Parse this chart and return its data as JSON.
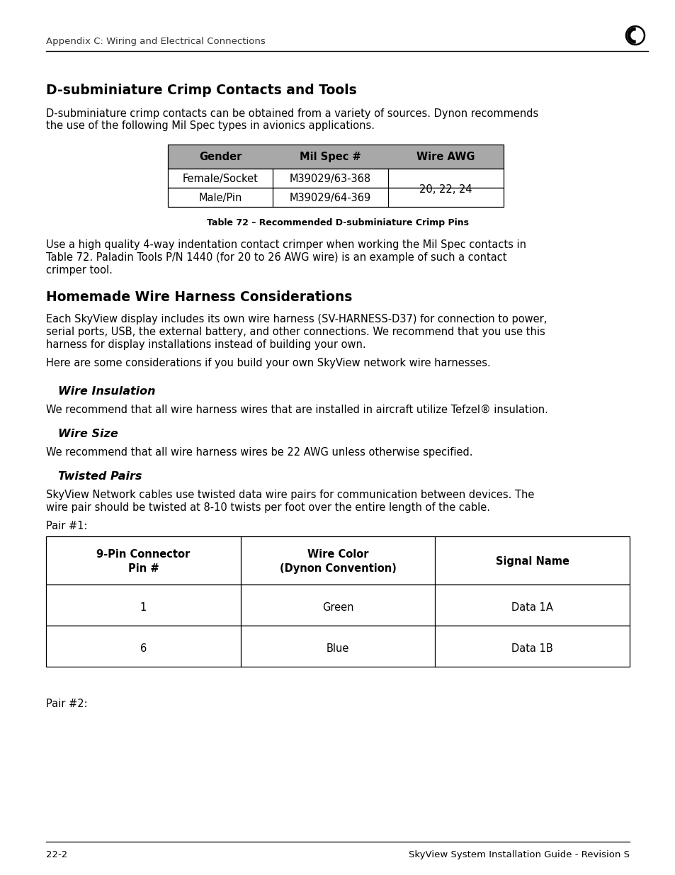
{
  "page_header_left": "Appendix C: Wiring and Electrical Connections",
  "page_footer_left": "22-2",
  "page_footer_right": "SkyView System Installation Guide - Revision S",
  "section1_title": "D-subminiature Crimp Contacts and Tools",
  "section1_para1": "D-subminiature crimp contacts can be obtained from a variety of sources. Dynon recommends\nthe use of the following Mil Spec types in avionics applications.",
  "table1_headers": [
    "Gender",
    "Mil Spec #",
    "Wire AWG"
  ],
  "table1_row1": [
    "Female/Socket",
    "M39029/63-368"
  ],
  "table1_row2": [
    "Male/Pin",
    "M39029/64-369"
  ],
  "table1_merged_cell": "20, 22, 24",
  "table1_caption": "Table 72 – Recommended D-subminiature Crimp Pins",
  "section1_para2_l1": "Use a high quality 4-way indentation contact crimper when working the Mil Spec contacts in",
  "section1_para2_l2": "Table 72. Paladin Tools P/N 1440 (for 20 to 26 AWG wire) is an example of such a contact",
  "section1_para2_l3": "crimper tool.",
  "section2_title": "Homemade Wire Harness Considerations",
  "section2_para1_l1": "Each SkyView display includes its own wire harness (SV-HARNESS-D37) for connection to power,",
  "section2_para1_l2": "serial ports, USB, the external battery, and other connections. We recommend that you use this",
  "section2_para1_l3": "harness for display installations instead of building your own.",
  "section2_para2": "Here are some considerations if you build your own SkyView network wire harnesses.",
  "subsection1_title": "Wire Insulation",
  "subsection1_para": "We recommend that all wire harness wires that are installed in aircraft utilize Tefzel® insulation.",
  "subsection2_title": "Wire Size",
  "subsection2_para": "We recommend that all wire harness wires be 22 AWG unless otherwise specified.",
  "subsection3_title": "Twisted Pairs",
  "subsection3_para1_l1": "SkyView Network cables use twisted data wire pairs for communication between devices. The",
  "subsection3_para1_l2": "wire pair should be twisted at 8-10 twists per foot over the entire length of the cable.",
  "subsection3_pair1": "Pair #1:",
  "table2_header1": "9-Pin Connector\nPin #",
  "table2_header2": "Wire Color\n(Dynon Convention)",
  "table2_header3": "Signal Name",
  "table2_rows": [
    [
      "1",
      "Green",
      "Data 1A"
    ],
    [
      "6",
      "Blue",
      "Data 1B"
    ]
  ],
  "subsection3_pair2": "Pair #2:",
  "bg_color": "#ffffff",
  "text_color": "#000000",
  "table1_header_bg": "#a8a8a8",
  "font_size_body": 10.5,
  "font_size_header_bar": 9.5,
  "font_size_section": 13.5,
  "font_size_subsection": 11.5,
  "font_size_footer": 9.5,
  "font_size_caption": 9.0
}
